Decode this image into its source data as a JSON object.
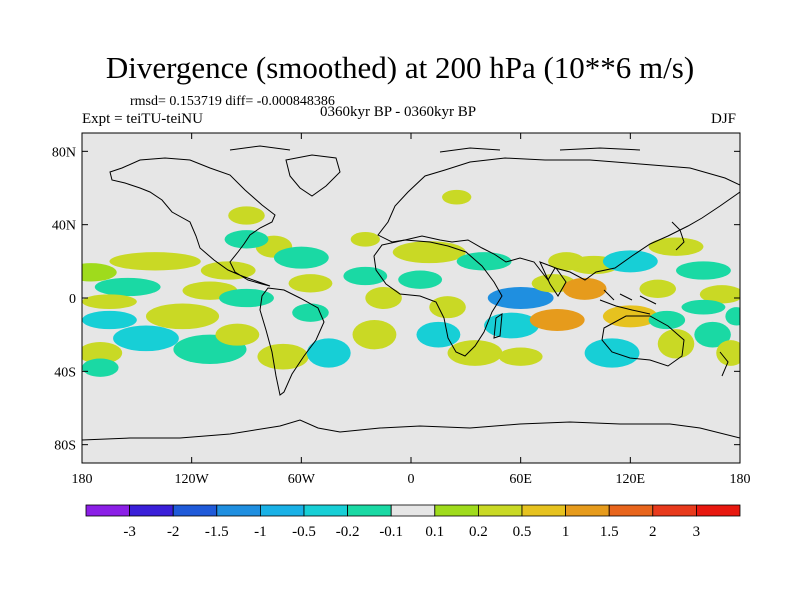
{
  "header": {
    "title": "Divergence (smoothed) at 200 hPa (10**6 m/s)",
    "stats": "rmsd= 0.153719 diff= -0.000848386",
    "experiment": "Expt = teiTU-teiNU",
    "period": "0360kyr BP - 0360kyr BP",
    "season": "DJF"
  },
  "chart_data": {
    "type": "heatmap",
    "title": "Divergence (smoothed) at 200 hPa (10**6 m/s)",
    "xlabel": "",
    "ylabel": "",
    "xlim": [
      -180,
      180
    ],
    "ylim": [
      -90,
      90
    ],
    "x_ticks": [
      {
        "value": -180,
        "label": "180"
      },
      {
        "value": -120,
        "label": "120W"
      },
      {
        "value": -60,
        "label": "60W"
      },
      {
        "value": 0,
        "label": "0"
      },
      {
        "value": 60,
        "label": "60E"
      },
      {
        "value": 120,
        "label": "120E"
      },
      {
        "value": 180,
        "label": "180"
      }
    ],
    "y_ticks": [
      {
        "value": 80,
        "label": "80N"
      },
      {
        "value": 40,
        "label": "40N"
      },
      {
        "value": 0,
        "label": "0"
      },
      {
        "value": -40,
        "label": "40S"
      },
      {
        "value": -80,
        "label": "80S"
      }
    ],
    "missing_color": "#e6e6e6",
    "levels": [
      -3,
      -2,
      -1.5,
      -1,
      -0.5,
      -0.2,
      -0.1,
      0.1,
      0.2,
      0.5,
      1,
      1.5,
      2,
      3
    ],
    "level_labels": [
      "-3",
      "-2",
      "-1.5",
      "-1",
      "-0.5",
      "-0.2",
      "-0.1",
      "0.1",
      "0.2",
      "0.5",
      "1",
      "1.5",
      "2",
      "3"
    ],
    "colors": [
      "#8b1fe6",
      "#3a1fd9",
      "#1f5ad9",
      "#1f8fe0",
      "#19b1e6",
      "#17cfd6",
      "#1ad9a4",
      "#e6e6e6",
      "#9fdb1c",
      "#c9d925",
      "#e6c21f",
      "#e69b1c",
      "#e8651c",
      "#e83a1c",
      "#e8180f"
    ],
    "anomaly_cells": [
      {
        "lon": -175,
        "lat": 14,
        "rlon": 14,
        "rlat": 5,
        "value": 0.15
      },
      {
        "lon": -140,
        "lat": 20,
        "rlon": 25,
        "rlat": 5,
        "value": 0.2
      },
      {
        "lon": -100,
        "lat": 15,
        "rlon": 15,
        "rlat": 5,
        "value": 0.3
      },
      {
        "lon": -155,
        "lat": 6,
        "rlon": 18,
        "rlat": 5,
        "value": -0.2
      },
      {
        "lon": -110,
        "lat": 4,
        "rlon": 15,
        "rlat": 5,
        "value": 0.2
      },
      {
        "lon": -165,
        "lat": -2,
        "rlon": 15,
        "rlat": 4,
        "value": 0.2
      },
      {
        "lon": -90,
        "lat": 0,
        "rlon": 15,
        "rlat": 5,
        "value": -0.2
      },
      {
        "lon": -165,
        "lat": -12,
        "rlon": 15,
        "rlat": 5,
        "value": -0.25
      },
      {
        "lon": -125,
        "lat": -10,
        "rlon": 20,
        "rlat": 7,
        "value": 0.3
      },
      {
        "lon": -145,
        "lat": -22,
        "rlon": 18,
        "rlat": 7,
        "value": -0.4
      },
      {
        "lon": -110,
        "lat": -28,
        "rlon": 20,
        "rlat": 8,
        "value": -0.2
      },
      {
        "lon": -95,
        "lat": -20,
        "rlon": 12,
        "rlat": 6,
        "value": 0.3
      },
      {
        "lon": -170,
        "lat": -30,
        "rlon": 12,
        "rlat": 6,
        "value": 0.2
      },
      {
        "lon": -170,
        "lat": -38,
        "rlon": 10,
        "rlat": 5,
        "value": -0.2
      },
      {
        "lon": -75,
        "lat": 28,
        "rlon": 10,
        "rlat": 6,
        "value": 0.2
      },
      {
        "lon": -60,
        "lat": 22,
        "rlon": 15,
        "rlat": 6,
        "value": -0.2
      },
      {
        "lon": -55,
        "lat": 8,
        "rlon": 12,
        "rlat": 5,
        "value": 0.2
      },
      {
        "lon": -55,
        "lat": -8,
        "rlon": 10,
        "rlat": 5,
        "value": -0.2
      },
      {
        "lon": -70,
        "lat": -32,
        "rlon": 14,
        "rlat": 7,
        "value": 0.2
      },
      {
        "lon": -45,
        "lat": -30,
        "rlon": 12,
        "rlat": 8,
        "value": -0.3
      },
      {
        "lon": -20,
        "lat": -20,
        "rlon": 12,
        "rlat": 8,
        "value": 0.2
      },
      {
        "lon": -25,
        "lat": 12,
        "rlon": 12,
        "rlat": 5,
        "value": -0.2
      },
      {
        "lon": -15,
        "lat": 0,
        "rlon": 10,
        "rlat": 6,
        "value": 0.2
      },
      {
        "lon": -25,
        "lat": 32,
        "rlon": 8,
        "rlat": 4,
        "value": 0.2
      },
      {
        "lon": 10,
        "lat": 25,
        "rlon": 20,
        "rlat": 6,
        "value": 0.2
      },
      {
        "lon": 5,
        "lat": 10,
        "rlon": 12,
        "rlat": 5,
        "value": -0.2
      },
      {
        "lon": 20,
        "lat": -5,
        "rlon": 10,
        "rlat": 6,
        "value": 0.2
      },
      {
        "lon": 15,
        "lat": -20,
        "rlon": 12,
        "rlat": 7,
        "value": -0.3
      },
      {
        "lon": 35,
        "lat": -30,
        "rlon": 15,
        "rlat": 7,
        "value": 0.2
      },
      {
        "lon": 25,
        "lat": 55,
        "rlon": 8,
        "rlat": 4,
        "value": 0.2
      },
      {
        "lon": -90,
        "lat": 45,
        "rlon": 10,
        "rlat": 5,
        "value": 0.3
      },
      {
        "lon": -90,
        "lat": 32,
        "rlon": 12,
        "rlat": 5,
        "value": -0.2
      },
      {
        "lon": 40,
        "lat": 20,
        "rlon": 15,
        "rlat": 5,
        "value": -0.2
      },
      {
        "lon": 60,
        "lat": 0,
        "rlon": 18,
        "rlat": 6,
        "value": -1.2
      },
      {
        "lon": 78,
        "lat": 8,
        "rlon": 12,
        "rlat": 5,
        "value": 0.3
      },
      {
        "lon": 95,
        "lat": 5,
        "rlon": 12,
        "rlat": 6,
        "value": 1.2
      },
      {
        "lon": 100,
        "lat": 18,
        "rlon": 14,
        "rlat": 5,
        "value": 0.3
      },
      {
        "lon": 120,
        "lat": 20,
        "rlon": 15,
        "rlat": 6,
        "value": -0.3
      },
      {
        "lon": 85,
        "lat": 20,
        "rlon": 10,
        "rlat": 5,
        "value": 0.2
      },
      {
        "lon": 55,
        "lat": -15,
        "rlon": 15,
        "rlat": 7,
        "value": -0.4
      },
      {
        "lon": 80,
        "lat": -12,
        "rlon": 15,
        "rlat": 6,
        "value": 1.2
      },
      {
        "lon": 120,
        "lat": -10,
        "rlon": 15,
        "rlat": 6,
        "value": 0.8
      },
      {
        "lon": 110,
        "lat": -30,
        "rlon": 15,
        "rlat": 8,
        "value": -0.3
      },
      {
        "lon": 140,
        "lat": -12,
        "rlon": 10,
        "rlat": 5,
        "value": -0.2
      },
      {
        "lon": 145,
        "lat": -25,
        "rlon": 10,
        "rlat": 8,
        "value": 0.3
      },
      {
        "lon": 165,
        "lat": -20,
        "rlon": 10,
        "rlat": 7,
        "value": -0.2
      },
      {
        "lon": 175,
        "lat": -30,
        "rlon": 8,
        "rlat": 7,
        "value": 0.2
      },
      {
        "lon": 160,
        "lat": 15,
        "rlon": 15,
        "rlat": 5,
        "value": -0.2
      },
      {
        "lon": 145,
        "lat": 28,
        "rlon": 15,
        "rlat": 5,
        "value": 0.2
      },
      {
        "lon": 170,
        "lat": 2,
        "rlon": 12,
        "rlat": 5,
        "value": 0.2
      },
      {
        "lon": 160,
        "lat": -5,
        "rlon": 12,
        "rlat": 4,
        "value": -0.2
      },
      {
        "lon": 135,
        "lat": 5,
        "rlon": 10,
        "rlat": 5,
        "value": 0.2
      },
      {
        "lon": 178,
        "lat": -10,
        "rlon": 6,
        "rlat": 5,
        "value": -0.2
      },
      {
        "lon": 60,
        "lat": -32,
        "rlon": 12,
        "rlat": 5,
        "value": 0.2
      }
    ]
  }
}
